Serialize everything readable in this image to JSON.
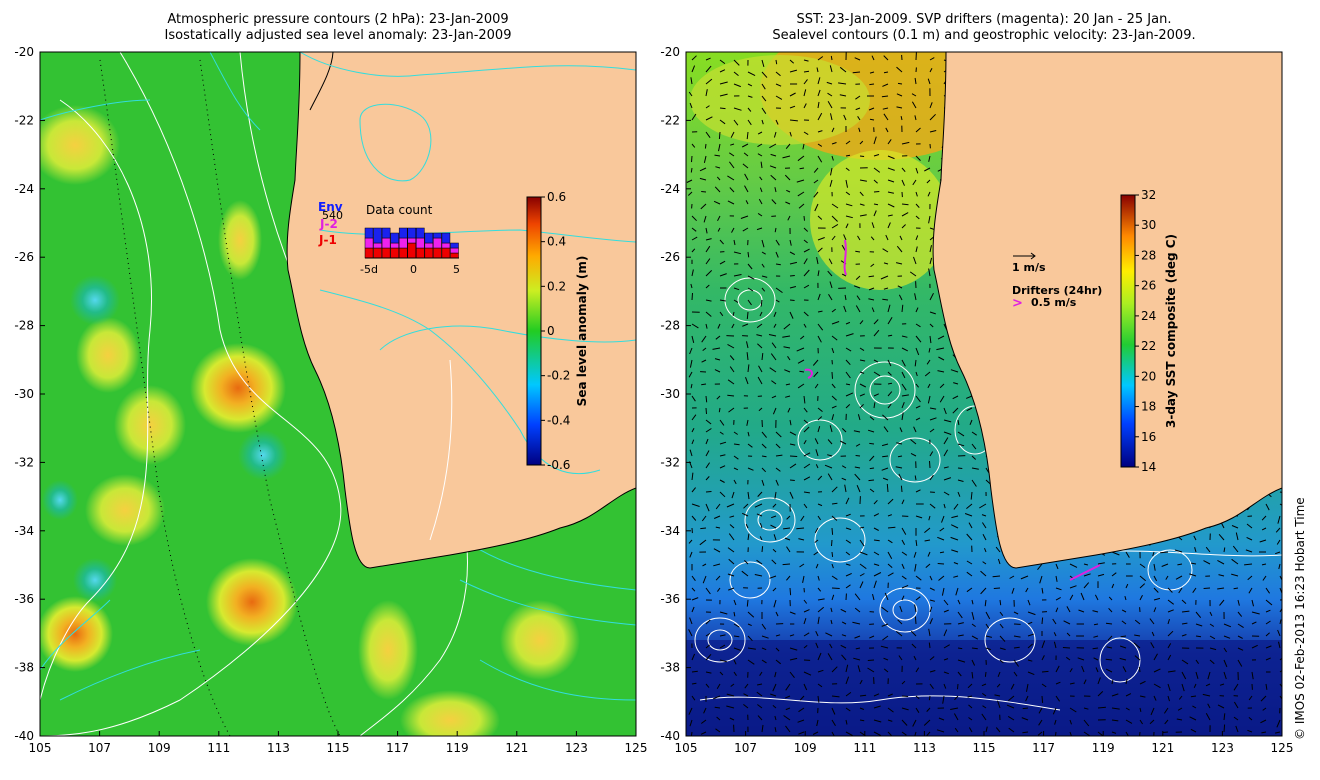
{
  "left_panel": {
    "title_line1": "Atmospheric pressure contours (2 hPa): 23-Jan-2009",
    "title_line2": "Isostatically adjusted sea level anomaly: 23-Jan-2009",
    "colorbar": {
      "label": "Sea level anomaly (m)",
      "ticks": [
        "0.6",
        "0.4",
        "0.2",
        "0",
        "-0.2",
        "-0.4",
        "-0.6"
      ]
    },
    "inset": {
      "title": "Data count",
      "legend": [
        "Env",
        "540",
        "J-2",
        "J-1"
      ],
      "ticks": [
        "-5d",
        "0",
        "5"
      ],
      "bars": [
        {
          "j1": 2,
          "j2": 2,
          "env": 2
        },
        {
          "j1": 2,
          "j2": 1,
          "env": 3
        },
        {
          "j1": 2,
          "j2": 2,
          "env": 2
        },
        {
          "j1": 2,
          "j2": 1,
          "env": 2
        },
        {
          "j1": 2,
          "j2": 2,
          "env": 2
        },
        {
          "j1": 3,
          "j2": 1,
          "env": 2
        },
        {
          "j1": 2,
          "j2": 2,
          "env": 2
        },
        {
          "j1": 2,
          "j2": 1,
          "env": 2
        },
        {
          "j1": 2,
          "j2": 2,
          "env": 1
        },
        {
          "j1": 2,
          "j2": 1,
          "env": 2
        },
        {
          "j1": 1,
          "j2": 1,
          "env": 1
        }
      ]
    }
  },
  "right_panel": {
    "title_line1": "SST: 23-Jan-2009. SVP drifters (magenta): 20 Jan - 25 Jan.",
    "title_line2": "Sealevel contours (0.1 m) and geostrophic velocity: 23-Jan-2009.",
    "colorbar": {
      "label": "3-day SST composite (deg C)",
      "ticks": [
        "32",
        "30",
        "28",
        "26",
        "24",
        "22",
        "20",
        "18",
        "16",
        "14"
      ]
    },
    "velocity_label": "1 m/s",
    "drifters_label": "Drifters (24hr)",
    "drifters_speed": "0.5 m/s"
  },
  "axes": {
    "y_ticks": [
      "-20",
      "-22",
      "-24",
      "-26",
      "-28",
      "-30",
      "-32",
      "-34",
      "-36",
      "-38",
      "-40"
    ],
    "x_ticks": [
      "105",
      "107",
      "109",
      "111",
      "113",
      "115",
      "117",
      "119",
      "121",
      "123",
      "125"
    ]
  },
  "credit": "© IMOS 02-Feb-2013 16:23 Hobart Time",
  "colors": {
    "land": "#f9c89b",
    "ocean_left": "#33c233",
    "contour_cyan": "#33dddd",
    "drifter": "#e020e0"
  }
}
